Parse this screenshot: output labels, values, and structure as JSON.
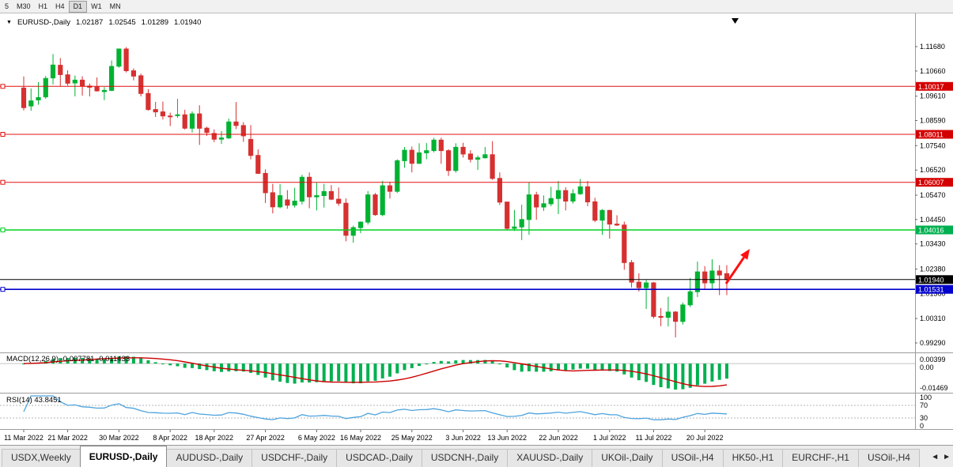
{
  "toolbar": {
    "timeframes": [
      "5",
      "M30",
      "H1",
      "H4",
      "D1",
      "W1",
      "MN"
    ],
    "active_timeframe": "D1"
  },
  "icons": {
    "dropdown": "▼",
    "tab_scroll_left": "◄",
    "tab_scroll_right": "►"
  },
  "chart_header": {
    "symbol": "EURUSD-,Daily",
    "open": "1.02187",
    "high": "1.02545",
    "low": "1.01289",
    "close": "1.01940"
  },
  "price_axis": [
    "1.11680",
    "1.10660",
    "1.09610",
    "1.08590",
    "1.07540",
    "1.06520",
    "1.05470",
    "1.04450",
    "1.03430",
    "1.02380",
    "1.01360",
    "1.00310",
    "0.99290"
  ],
  "price_tags": [
    {
      "text": "1.10017",
      "color": "#d40000"
    },
    {
      "text": "1.08011",
      "color": "#d40000"
    },
    {
      "text": "1.06007",
      "color": "#d40000"
    },
    {
      "text": "1.04016",
      "color": "#00b050"
    },
    {
      "text": "1.01940",
      "color": "#000000"
    },
    {
      "text": "1.01531",
      "color": "#0000cc"
    }
  ],
  "hlines": [
    {
      "price": 1.10017,
      "color": "#e01010",
      "width": 1,
      "anchor": true
    },
    {
      "price": 1.08011,
      "color": "#e01010",
      "width": 1,
      "anchor": true
    },
    {
      "price": 1.06007,
      "color": "#e01010",
      "width": 1,
      "anchor": true
    },
    {
      "price": 1.04016,
      "color": "#00d020",
      "width": 1.4,
      "anchor": true
    },
    {
      "price": 1.0194,
      "color": "#000000",
      "width": 1,
      "anchor": false
    },
    {
      "price": 1.01531,
      "color": "#0000cc",
      "width": 1.6,
      "anchor": true
    }
  ],
  "macd_panel": {
    "label": "MACD(12,26,9) -0.007781 -0.011433",
    "axis_labels": [
      "0.00399",
      "0.00",
      "-0.01469"
    ],
    "histogram_color": "#00b050",
    "signal_color": "#cc0000"
  },
  "rsi_panel": {
    "label": "RSI(14) 43.8451",
    "axis_labels": [
      "100",
      "70",
      "30",
      "0"
    ],
    "levels": [
      70,
      30
    ],
    "line_color": "#4da3dd"
  },
  "date_axis": {
    "ticks": [
      {
        "i": 0,
        "label": "11 Mar 2022"
      },
      {
        "i": 6,
        "label": "21 Mar 2022"
      },
      {
        "i": 13,
        "label": "30 Mar 2022"
      },
      {
        "i": 20,
        "label": "8 Apr 2022"
      },
      {
        "i": 26,
        "label": "18 Apr 2022"
      },
      {
        "i": 33,
        "label": "27 Apr 2022"
      },
      {
        "i": 40,
        "label": "6 May 2022"
      },
      {
        "i": 46,
        "label": "16 May 2022"
      },
      {
        "i": 53,
        "label": "25 May 2022"
      },
      {
        "i": 60,
        "label": "3 Jun 2022"
      },
      {
        "i": 66,
        "label": "13 Jun 2022"
      },
      {
        "i": 73,
        "label": "22 Jun 2022"
      },
      {
        "i": 80,
        "label": "1 Jul 2022"
      },
      {
        "i": 86,
        "label": "11 Jul 2022"
      },
      {
        "i": 93,
        "label": "20 Jul 2022"
      }
    ]
  },
  "tabs": {
    "items": [
      "USDX,Weekly",
      "EURUSD-,Daily",
      "AUDUSD-,Daily",
      "USDCHF-,Daily",
      "USDCAD-,Daily",
      "USDCNH-,Daily",
      "XAUUSD-,Daily",
      "UKOil-,Daily",
      "USOil-,H4",
      "HK50-,H1",
      "EURCHF-,H1",
      "USOil-,H4"
    ],
    "active": "EURUSD-,Daily"
  },
  "annotations": {
    "trend_arrow": {
      "color": "#ff1010"
    }
  },
  "chart_data": {
    "type": "candlestick",
    "title": "EURUSD-,Daily",
    "symbol": "EURUSD",
    "timeframe": "Daily",
    "ylim": [
      0.98893,
      1.13068
    ],
    "up_color": "#00b232",
    "down_color": "#d63030",
    "last_ohlc": {
      "open": 1.02187,
      "high": 1.02545,
      "low": 1.01289,
      "close": 1.0194
    },
    "ohlc": [
      [
        1.0995,
        1.1043,
        1.0901,
        1.0913
      ],
      [
        1.092,
        1.0993,
        1.09,
        1.0941
      ],
      [
        1.0945,
        1.102,
        1.0925,
        1.0955
      ],
      [
        1.0958,
        1.1045,
        1.095,
        1.1035
      ],
      [
        1.1037,
        1.1137,
        1.101,
        1.1091
      ],
      [
        1.109,
        1.112,
        1.1003,
        1.1051
      ],
      [
        1.105,
        1.1069,
        1.1005,
        1.1015
      ],
      [
        1.1016,
        1.1047,
        1.096,
        1.1028
      ],
      [
        1.1028,
        1.1044,
        1.0963,
        1.1003
      ],
      [
        1.1003,
        1.1014,
        1.096,
        1.0998
      ],
      [
        1.0999,
        1.1039,
        1.098,
        1.0983
      ],
      [
        1.098,
        1.0999,
        1.0944,
        1.0985
      ],
      [
        1.0985,
        1.111,
        1.0982,
        1.1085
      ],
      [
        1.1086,
        1.116,
        1.108,
        1.1158
      ],
      [
        1.1158,
        1.1166,
        1.106,
        1.1067
      ],
      [
        1.1067,
        1.1077,
        1.1027,
        1.1045
      ],
      [
        1.1046,
        1.1055,
        1.096,
        1.0972
      ],
      [
        1.0972,
        1.099,
        1.09,
        1.0905
      ],
      [
        1.0905,
        1.0937,
        1.0874,
        1.0895
      ],
      [
        1.0895,
        1.0938,
        1.0863,
        1.0878
      ],
      [
        1.0878,
        1.0892,
        1.0836,
        1.0876
      ],
      [
        1.088,
        1.095,
        1.087,
        1.0883
      ],
      [
        1.0883,
        1.0904,
        1.0821,
        1.0827
      ],
      [
        1.0827,
        1.0897,
        1.0809,
        1.0887
      ],
      [
        1.0887,
        1.0923,
        1.0757,
        1.0827
      ],
      [
        1.0827,
        1.0833,
        1.0795,
        1.0809
      ],
      [
        1.0805,
        1.0822,
        1.0769,
        1.0781
      ],
      [
        1.0781,
        1.0815,
        1.0761,
        1.0786
      ],
      [
        1.0786,
        1.0867,
        1.0782,
        1.0853
      ],
      [
        1.0853,
        1.0936,
        1.0823,
        1.0838
      ],
      [
        1.0838,
        1.0852,
        1.077,
        1.0795
      ],
      [
        1.078,
        1.084,
        1.0697,
        1.0713
      ],
      [
        1.0713,
        1.0738,
        1.0635,
        1.0638
      ],
      [
        1.0638,
        1.0655,
        1.0514,
        1.0557
      ],
      [
        1.0557,
        1.0594,
        1.0471,
        1.0498
      ],
      [
        1.0498,
        1.0593,
        1.0492,
        1.0545
      ],
      [
        1.0527,
        1.0568,
        1.049,
        1.0505
      ],
      [
        1.0505,
        1.0578,
        1.0495,
        1.0522
      ],
      [
        1.0522,
        1.0632,
        1.0508,
        1.0622
      ],
      [
        1.0622,
        1.0642,
        1.0492,
        1.054
      ],
      [
        1.054,
        1.0599,
        1.0483,
        1.0545
      ],
      [
        1.0545,
        1.0594,
        1.0495,
        1.0562
      ],
      [
        1.0562,
        1.0589,
        1.0526,
        1.053
      ],
      [
        1.053,
        1.0579,
        1.0503,
        1.0513
      ],
      [
        1.0513,
        1.0533,
        1.0354,
        1.0379
      ],
      [
        1.0379,
        1.0419,
        1.0348,
        1.0411
      ],
      [
        1.0411,
        1.0437,
        1.0388,
        1.0434
      ],
      [
        1.0434,
        1.0564,
        1.0424,
        1.0548
      ],
      [
        1.0548,
        1.0556,
        1.0461,
        1.0465
      ],
      [
        1.0465,
        1.0607,
        1.0459,
        1.0586
      ],
      [
        1.0586,
        1.0603,
        1.0533,
        1.0563
      ],
      [
        1.0563,
        1.0697,
        1.0556,
        1.0691
      ],
      [
        1.0691,
        1.0748,
        1.0661,
        1.0735
      ],
      [
        1.0735,
        1.075,
        1.0642,
        1.068
      ],
      [
        1.068,
        1.0764,
        1.0677,
        1.0724
      ],
      [
        1.0724,
        1.0765,
        1.0697,
        1.0733
      ],
      [
        1.0733,
        1.0786,
        1.0726,
        1.0777
      ],
      [
        1.0777,
        1.0787,
        1.0678,
        1.0733
      ],
      [
        1.0733,
        1.0739,
        1.0627,
        1.065
      ],
      [
        1.065,
        1.0764,
        1.0641,
        1.0747
      ],
      [
        1.0747,
        1.0766,
        1.0704,
        1.0719
      ],
      [
        1.0719,
        1.0735,
        1.0684,
        1.0697
      ],
      [
        1.0697,
        1.0713,
        1.0653,
        1.0703
      ],
      [
        1.0703,
        1.0748,
        1.07,
        1.0716
      ],
      [
        1.0716,
        1.0773,
        1.0611,
        1.0617
      ],
      [
        1.0617,
        1.0642,
        1.0506,
        1.0518
      ],
      [
        1.0518,
        1.052,
        1.0399,
        1.0408
      ],
      [
        1.0408,
        1.0485,
        1.0397,
        1.0414
      ],
      [
        1.0414,
        1.0507,
        1.0359,
        1.0445
      ],
      [
        1.0445,
        1.0601,
        1.0381,
        1.0548
      ],
      [
        1.0548,
        1.0561,
        1.0444,
        1.0497
      ],
      [
        1.0497,
        1.0546,
        1.0481,
        1.0511
      ],
      [
        1.0511,
        1.0582,
        1.0501,
        1.0533
      ],
      [
        1.0533,
        1.0606,
        1.0468,
        1.0566
      ],
      [
        1.0566,
        1.058,
        1.0483,
        1.0522
      ],
      [
        1.0522,
        1.0572,
        1.0512,
        1.0553
      ],
      [
        1.0553,
        1.0615,
        1.0548,
        1.0582
      ],
      [
        1.0582,
        1.0606,
        1.0501,
        1.0519
      ],
      [
        1.0519,
        1.0536,
        1.0434,
        1.0442
      ],
      [
        1.0442,
        1.0489,
        1.0381,
        1.0483
      ],
      [
        1.0483,
        1.0486,
        1.0365,
        1.0426
      ],
      [
        1.0426,
        1.0463,
        1.0418,
        1.0422
      ],
      [
        1.0422,
        1.0436,
        1.0235,
        1.0265
      ],
      [
        1.0265,
        1.0276,
        1.0161,
        1.0183
      ],
      [
        1.0183,
        1.022,
        1.0144,
        1.016
      ],
      [
        1.016,
        1.0192,
        1.0071,
        1.018
      ],
      [
        1.018,
        1.0184,
        1.0031,
        1.004
      ],
      [
        1.004,
        1.0075,
        0.9999,
        1.0036
      ],
      [
        1.0036,
        1.0122,
        0.9998,
        1.0058
      ],
      [
        1.0058,
        1.0062,
        0.9952,
        1.0019
      ],
      [
        1.0019,
        1.0098,
        1.0006,
        1.0088
      ],
      [
        1.0088,
        1.0201,
        1.0079,
        1.0143
      ],
      [
        1.0143,
        1.0269,
        1.0121,
        1.0226
      ],
      [
        1.0226,
        1.025,
        1.0155,
        1.018
      ],
      [
        1.018,
        1.0279,
        1.0152,
        1.023
      ],
      [
        1.023,
        1.0254,
        1.0129,
        1.0213
      ],
      [
        1.02187,
        1.02545,
        1.01289,
        1.0194
      ]
    ]
  }
}
